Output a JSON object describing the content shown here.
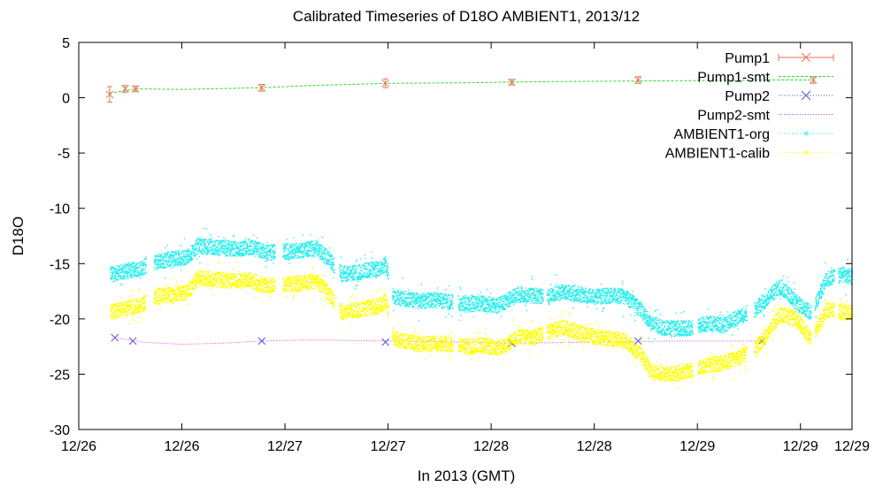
{
  "chart_data": {
    "type": "line",
    "title": "Calibrated Timeseries of D18O AMBIENT1, 2013/12",
    "xlabel": "In 2013 (GMT)",
    "ylabel": "D18O",
    "xlim": [
      0,
      3.0
    ],
    "ylim": [
      -30,
      5
    ],
    "x_tick_values": [
      0,
      0.4,
      0.8,
      1.2,
      1.6,
      2.0,
      2.4,
      2.8,
      3.0
    ],
    "x_tick_labels": [
      "12/26",
      "12/26",
      "12/27",
      "12/27",
      "12/28",
      "12/28",
      "12/29",
      "12/29",
      "12/29"
    ],
    "y_ticks": [
      5,
      0,
      -5,
      -10,
      -15,
      -20,
      -25,
      -30
    ],
    "grid": false,
    "legend_position": "top-right",
    "series": [
      {
        "name": "Pump1",
        "style": "points-errorbars",
        "marker": "x",
        "color": "#e8755b",
        "x": [
          0.12,
          0.18,
          0.22,
          0.71,
          1.19,
          1.68,
          2.17,
          2.85
        ],
        "y": [
          0.3,
          0.8,
          0.8,
          0.9,
          1.3,
          1.4,
          1.6,
          1.6
        ],
        "err": [
          0.7,
          0.3,
          0.25,
          0.3,
          0.4,
          0.25,
          0.3,
          0.3
        ]
      },
      {
        "name": "Pump1-smt",
        "style": "dashed-line",
        "color": "#22dd22",
        "x": [
          0.12,
          0.22,
          0.4,
          0.7,
          0.9,
          1.2,
          1.5,
          1.8,
          2.1,
          2.4,
          2.7,
          2.85
        ],
        "y": [
          0.4,
          0.8,
          0.75,
          0.9,
          1.1,
          1.3,
          1.35,
          1.45,
          1.5,
          1.55,
          1.6,
          1.6
        ]
      },
      {
        "name": "Pump2",
        "style": "points",
        "marker": "x",
        "color": "#5555dd",
        "x": [
          0.14,
          0.21,
          0.71,
          1.19,
          1.68,
          2.17,
          2.65
        ],
        "y": [
          -21.7,
          -22.0,
          -22.0,
          -22.1,
          -22.2,
          -22.0,
          -22.0
        ]
      },
      {
        "name": "Pump2-smt",
        "style": "dotted-line",
        "color": "#dd33dd",
        "x": [
          0.14,
          0.25,
          0.4,
          0.55,
          0.71,
          0.9,
          1.19,
          1.5,
          1.68,
          2.0,
          2.3,
          2.65
        ],
        "y": [
          -21.7,
          -22.1,
          -22.3,
          -22.2,
          -22.0,
          -21.9,
          -22.0,
          -22.1,
          -22.2,
          -22.1,
          -22.0,
          -22.0
        ]
      },
      {
        "name": "AMBIENT1-org",
        "style": "dense-points",
        "color": "#22eeee",
        "x": [
          0.12,
          0.16,
          0.2,
          0.24,
          0.3,
          0.36,
          0.42,
          0.46,
          0.5,
          0.56,
          0.62,
          0.66,
          0.7,
          0.74,
          0.8,
          0.86,
          0.92,
          0.96,
          1.02,
          1.08,
          1.12,
          1.16,
          1.19,
          1.22,
          1.26,
          1.32,
          1.38,
          1.44,
          1.5,
          1.56,
          1.62,
          1.66,
          1.7,
          1.76,
          1.82,
          1.88,
          1.94,
          2.0,
          2.06,
          2.12,
          2.18,
          2.22,
          2.26,
          2.32,
          2.38,
          2.44,
          2.5,
          2.56,
          2.62,
          2.66,
          2.72,
          2.78,
          2.84,
          2.9,
          2.96,
          3.0
        ],
        "y": [
          -16.0,
          -15.8,
          -15.6,
          -15.4,
          -14.8,
          -14.6,
          -14.4,
          -13.4,
          -13.5,
          -13.6,
          -13.7,
          -13.5,
          -13.8,
          -14.0,
          -13.9,
          -13.8,
          -13.6,
          -14.4,
          -16.0,
          -15.8,
          -15.6,
          -15.5,
          -15.0,
          -18.0,
          -18.2,
          -18.4,
          -18.3,
          -18.5,
          -18.7,
          -18.6,
          -18.8,
          -18.4,
          -17.8,
          -17.9,
          -18.0,
          -17.5,
          -17.8,
          -18.0,
          -17.9,
          -18.0,
          -19.2,
          -20.4,
          -20.8,
          -20.9,
          -20.8,
          -20.4,
          -20.6,
          -19.8,
          -19.2,
          -18.4,
          -17.0,
          -18.5,
          -19.4,
          -16.4,
          -16.0,
          -16.2
        ]
      },
      {
        "name": "AMBIENT1-calib",
        "style": "dense-points",
        "color": "#ffff00",
        "x": [
          0.12,
          0.16,
          0.2,
          0.24,
          0.3,
          0.36,
          0.42,
          0.46,
          0.5,
          0.56,
          0.62,
          0.66,
          0.7,
          0.74,
          0.8,
          0.86,
          0.92,
          0.96,
          1.02,
          1.08,
          1.12,
          1.16,
          1.19,
          1.22,
          1.26,
          1.32,
          1.38,
          1.44,
          1.5,
          1.56,
          1.62,
          1.66,
          1.7,
          1.76,
          1.82,
          1.88,
          1.94,
          2.0,
          2.06,
          2.12,
          2.18,
          2.22,
          2.26,
          2.32,
          2.38,
          2.44,
          2.5,
          2.56,
          2.62,
          2.66,
          2.72,
          2.78,
          2.84,
          2.9,
          2.96,
          3.0
        ],
        "y": [
          -19.4,
          -19.2,
          -19.0,
          -18.8,
          -18.0,
          -17.8,
          -17.6,
          -16.3,
          -16.4,
          -16.5,
          -16.6,
          -16.4,
          -16.9,
          -17.0,
          -16.9,
          -16.8,
          -16.6,
          -17.5,
          -19.4,
          -19.2,
          -19.0,
          -18.9,
          -18.3,
          -21.8,
          -22.0,
          -22.3,
          -22.2,
          -22.3,
          -22.5,
          -22.4,
          -22.6,
          -22.3,
          -21.6,
          -21.7,
          -21.2,
          -20.8,
          -21.3,
          -21.6,
          -21.8,
          -22.0,
          -23.3,
          -24.8,
          -25.0,
          -24.9,
          -24.6,
          -24.2,
          -24.0,
          -23.5,
          -22.8,
          -21.6,
          -19.6,
          -20.0,
          -21.8,
          -19.2,
          -19.4,
          -19.5
        ]
      }
    ]
  }
}
